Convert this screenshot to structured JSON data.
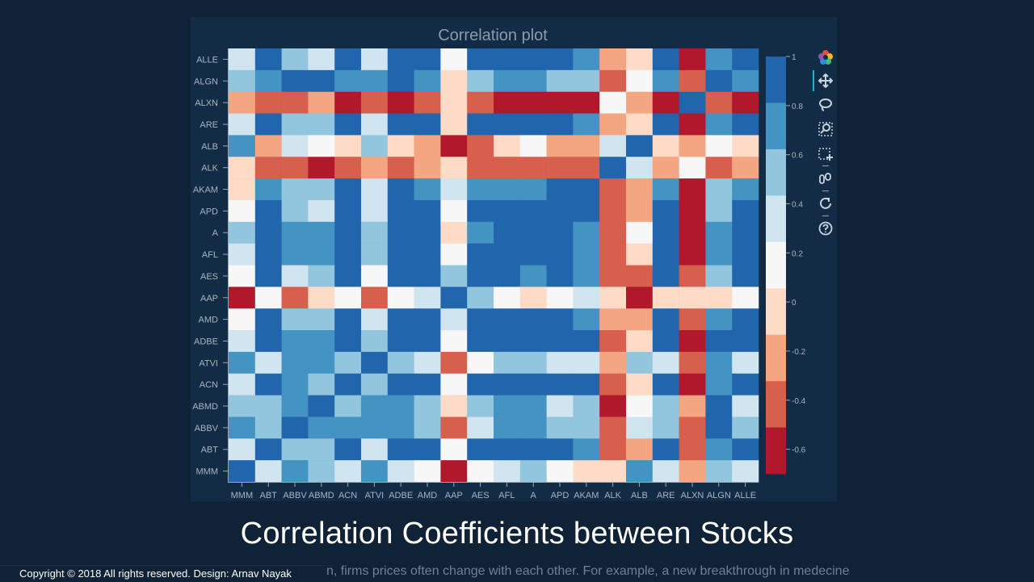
{
  "title": "Correlation plot",
  "headline": "Correlation Coefficients between Stocks",
  "subtext": "n, firms prices often change with each other. For example, a new breakthrough in medecine",
  "footer": "Copyright © 2018 All rights reserved. Design: Arnav Nayak",
  "toolbar": {
    "tools": [
      "bokeh-logo-icon",
      "pan-icon",
      "lasso-select-icon",
      "box-zoom-icon",
      "box-select-icon",
      "hover-icon",
      "reset-icon",
      "help-icon"
    ]
  },
  "chart_data": {
    "type": "heatmap",
    "title": "Correlation plot",
    "x_labels": [
      "MMM",
      "ABT",
      "ABBV",
      "ABMD",
      "ACN",
      "ATVI",
      "ADBE",
      "AMD",
      "AAP",
      "AES",
      "AFL",
      "A",
      "APD",
      "AKAM",
      "ALK",
      "ALB",
      "ARE",
      "ALXN",
      "ALGN",
      "ALLE"
    ],
    "y_labels": [
      "ALLE",
      "ALGN",
      "ALXN",
      "ARE",
      "ALB",
      "ALK",
      "AKAM",
      "APD",
      "A",
      "AFL",
      "AES",
      "AAP",
      "AMD",
      "ADBE",
      "ATVI",
      "ACN",
      "ABMD",
      "ABBV",
      "ABT",
      "MMM"
    ],
    "values": [
      [
        0.35,
        0.85,
        0.55,
        0.35,
        0.85,
        0.35,
        0.85,
        0.85,
        0.15,
        0.85,
        0.85,
        0.85,
        0.85,
        0.65,
        -0.25,
        0.05,
        0.85,
        -0.65,
        0.65,
        0.85
      ],
      [
        0.55,
        0.65,
        0.85,
        0.85,
        0.65,
        0.65,
        0.85,
        0.65,
        0.05,
        0.55,
        0.65,
        0.65,
        0.55,
        0.55,
        -0.45,
        0.15,
        0.65,
        -0.45,
        0.85,
        0.65
      ],
      [
        -0.25,
        -0.45,
        -0.45,
        -0.25,
        -0.65,
        -0.45,
        -0.65,
        -0.45,
        0.05,
        -0.45,
        -0.65,
        -0.65,
        -0.65,
        -0.65,
        0.15,
        -0.25,
        -0.65,
        0.85,
        -0.45,
        -0.65
      ],
      [
        0.35,
        0.85,
        0.55,
        0.55,
        0.85,
        0.35,
        0.85,
        0.85,
        0.05,
        0.85,
        0.85,
        0.85,
        0.85,
        0.65,
        -0.25,
        0.05,
        0.85,
        -0.65,
        0.65,
        0.85
      ],
      [
        0.65,
        -0.25,
        0.35,
        0.15,
        0.05,
        0.55,
        0.05,
        -0.25,
        -0.65,
        -0.45,
        0.05,
        0.15,
        -0.25,
        -0.25,
        0.35,
        0.85,
        0.05,
        -0.25,
        0.15,
        0.05
      ],
      [
        0.05,
        -0.45,
        -0.45,
        -0.65,
        -0.45,
        -0.25,
        -0.45,
        -0.25,
        0.05,
        -0.45,
        -0.45,
        -0.45,
        -0.45,
        -0.45,
        0.85,
        0.35,
        -0.25,
        0.15,
        -0.45,
        -0.25
      ],
      [
        0.05,
        0.65,
        0.55,
        0.55,
        0.85,
        0.35,
        0.85,
        0.65,
        0.35,
        0.65,
        0.65,
        0.65,
        0.85,
        0.85,
        -0.45,
        -0.25,
        0.65,
        -0.65,
        0.55,
        0.65
      ],
      [
        0.15,
        0.85,
        0.55,
        0.35,
        0.85,
        0.35,
        0.85,
        0.85,
        0.15,
        0.85,
        0.85,
        0.85,
        0.85,
        0.85,
        -0.45,
        -0.25,
        0.85,
        -0.65,
        0.55,
        0.85
      ],
      [
        0.55,
        0.85,
        0.65,
        0.65,
        0.85,
        0.55,
        0.85,
        0.85,
        0.05,
        0.65,
        0.85,
        0.85,
        0.85,
        0.65,
        -0.45,
        0.15,
        0.85,
        -0.65,
        0.65,
        0.85
      ],
      [
        0.35,
        0.85,
        0.65,
        0.65,
        0.85,
        0.55,
        0.85,
        0.85,
        0.15,
        0.85,
        0.85,
        0.85,
        0.85,
        0.65,
        -0.45,
        0.05,
        0.85,
        -0.65,
        0.65,
        0.85
      ],
      [
        0.15,
        0.85,
        0.35,
        0.55,
        0.85,
        0.15,
        0.85,
        0.85,
        0.55,
        0.85,
        0.85,
        0.65,
        0.85,
        0.65,
        -0.45,
        -0.45,
        0.85,
        -0.45,
        0.55,
        0.85
      ],
      [
        -0.65,
        0.15,
        -0.45,
        0.05,
        0.15,
        -0.45,
        0.15,
        0.35,
        0.85,
        0.55,
        0.15,
        0.05,
        0.15,
        0.35,
        0.05,
        -0.65,
        0.05,
        0.05,
        0.05,
        0.15
      ],
      [
        0.15,
        0.85,
        0.55,
        0.55,
        0.85,
        0.35,
        0.85,
        0.85,
        0.35,
        0.85,
        0.85,
        0.85,
        0.85,
        0.65,
        -0.25,
        -0.25,
        0.85,
        -0.45,
        0.65,
        0.85
      ],
      [
        0.35,
        0.85,
        0.65,
        0.65,
        0.85,
        0.55,
        0.85,
        0.85,
        0.15,
        0.85,
        0.85,
        0.85,
        0.85,
        0.85,
        -0.45,
        0.05,
        0.85,
        -0.65,
        0.85,
        0.85
      ],
      [
        0.65,
        0.35,
        0.65,
        0.65,
        0.55,
        0.85,
        0.55,
        0.35,
        -0.45,
        0.15,
        0.55,
        0.55,
        0.35,
        0.35,
        -0.25,
        0.55,
        0.35,
        -0.45,
        0.65,
        0.35
      ],
      [
        0.35,
        0.85,
        0.65,
        0.55,
        0.85,
        0.55,
        0.85,
        0.85,
        0.15,
        0.85,
        0.85,
        0.85,
        0.85,
        0.85,
        -0.45,
        0.05,
        0.85,
        -0.65,
        0.65,
        0.85
      ],
      [
        0.55,
        0.55,
        0.65,
        0.85,
        0.55,
        0.65,
        0.65,
        0.55,
        0.05,
        0.55,
        0.65,
        0.65,
        0.35,
        0.55,
        -0.65,
        0.15,
        0.55,
        -0.25,
        0.85,
        0.35
      ],
      [
        0.65,
        0.55,
        0.85,
        0.65,
        0.65,
        0.65,
        0.65,
        0.55,
        -0.45,
        0.35,
        0.65,
        0.65,
        0.55,
        0.55,
        -0.45,
        0.35,
        0.55,
        -0.45,
        0.85,
        0.55
      ],
      [
        0.35,
        0.85,
        0.55,
        0.55,
        0.85,
        0.35,
        0.85,
        0.85,
        0.15,
        0.85,
        0.85,
        0.85,
        0.85,
        0.65,
        -0.45,
        -0.25,
        0.85,
        -0.45,
        0.65,
        0.85
      ],
      [
        0.85,
        0.35,
        0.65,
        0.55,
        0.35,
        0.65,
        0.35,
        0.15,
        -0.65,
        0.15,
        0.35,
        0.55,
        0.15,
        0.05,
        0.05,
        0.65,
        0.35,
        -0.25,
        0.55,
        0.35
      ]
    ],
    "colorbar": {
      "range": [
        -0.7,
        1.0
      ],
      "ticks": [
        1,
        0.8,
        0.6,
        0.4,
        0.2,
        0,
        -0.2,
        -0.4,
        -0.6
      ],
      "tick_labels": [
        "1",
        "0.8",
        "0.6",
        "0.4",
        "0.2",
        "0",
        "-0.2",
        "-0.4",
        "-0.6"
      ],
      "palette": [
        "#b2182b",
        "#d6604d",
        "#f4a582",
        "#fddbc7",
        "#f7f7f7",
        "#d1e5f0",
        "#92c5de",
        "#4393c3",
        "#2166ac"
      ]
    }
  }
}
